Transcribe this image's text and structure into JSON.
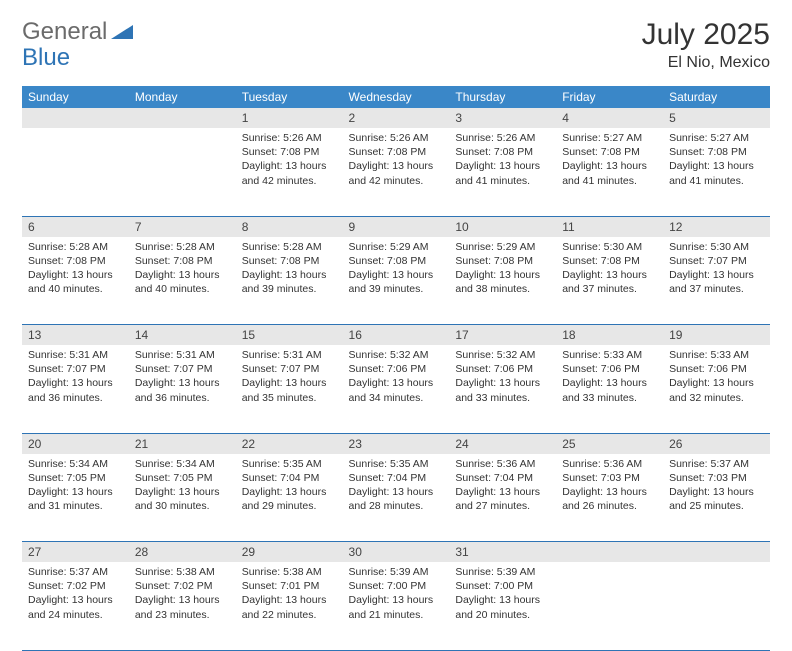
{
  "logo": {
    "general": "General",
    "blue": "Blue"
  },
  "title": "July 2025",
  "location": "El Nio, Mexico",
  "colors": {
    "header_bg": "#3a87c8",
    "header_text": "#ffffff",
    "daynum_bg": "#e7e7e7",
    "rule": "#2e74b5",
    "logo_gray": "#6b6b6b",
    "logo_blue": "#2e74b5",
    "body_text": "#333333"
  },
  "weekdays": [
    "Sunday",
    "Monday",
    "Tuesday",
    "Wednesday",
    "Thursday",
    "Friday",
    "Saturday"
  ],
  "weeks": [
    [
      null,
      null,
      {
        "n": "1",
        "sr": "5:26 AM",
        "ss": "7:08 PM",
        "dl": "13 hours and 42 minutes."
      },
      {
        "n": "2",
        "sr": "5:26 AM",
        "ss": "7:08 PM",
        "dl": "13 hours and 42 minutes."
      },
      {
        "n": "3",
        "sr": "5:26 AM",
        "ss": "7:08 PM",
        "dl": "13 hours and 41 minutes."
      },
      {
        "n": "4",
        "sr": "5:27 AM",
        "ss": "7:08 PM",
        "dl": "13 hours and 41 minutes."
      },
      {
        "n": "5",
        "sr": "5:27 AM",
        "ss": "7:08 PM",
        "dl": "13 hours and 41 minutes."
      }
    ],
    [
      {
        "n": "6",
        "sr": "5:28 AM",
        "ss": "7:08 PM",
        "dl": "13 hours and 40 minutes."
      },
      {
        "n": "7",
        "sr": "5:28 AM",
        "ss": "7:08 PM",
        "dl": "13 hours and 40 minutes."
      },
      {
        "n": "8",
        "sr": "5:28 AM",
        "ss": "7:08 PM",
        "dl": "13 hours and 39 minutes."
      },
      {
        "n": "9",
        "sr": "5:29 AM",
        "ss": "7:08 PM",
        "dl": "13 hours and 39 minutes."
      },
      {
        "n": "10",
        "sr": "5:29 AM",
        "ss": "7:08 PM",
        "dl": "13 hours and 38 minutes."
      },
      {
        "n": "11",
        "sr": "5:30 AM",
        "ss": "7:08 PM",
        "dl": "13 hours and 37 minutes."
      },
      {
        "n": "12",
        "sr": "5:30 AM",
        "ss": "7:07 PM",
        "dl": "13 hours and 37 minutes."
      }
    ],
    [
      {
        "n": "13",
        "sr": "5:31 AM",
        "ss": "7:07 PM",
        "dl": "13 hours and 36 minutes."
      },
      {
        "n": "14",
        "sr": "5:31 AM",
        "ss": "7:07 PM",
        "dl": "13 hours and 36 minutes."
      },
      {
        "n": "15",
        "sr": "5:31 AM",
        "ss": "7:07 PM",
        "dl": "13 hours and 35 minutes."
      },
      {
        "n": "16",
        "sr": "5:32 AM",
        "ss": "7:06 PM",
        "dl": "13 hours and 34 minutes."
      },
      {
        "n": "17",
        "sr": "5:32 AM",
        "ss": "7:06 PM",
        "dl": "13 hours and 33 minutes."
      },
      {
        "n": "18",
        "sr": "5:33 AM",
        "ss": "7:06 PM",
        "dl": "13 hours and 33 minutes."
      },
      {
        "n": "19",
        "sr": "5:33 AM",
        "ss": "7:06 PM",
        "dl": "13 hours and 32 minutes."
      }
    ],
    [
      {
        "n": "20",
        "sr": "5:34 AM",
        "ss": "7:05 PM",
        "dl": "13 hours and 31 minutes."
      },
      {
        "n": "21",
        "sr": "5:34 AM",
        "ss": "7:05 PM",
        "dl": "13 hours and 30 minutes."
      },
      {
        "n": "22",
        "sr": "5:35 AM",
        "ss": "7:04 PM",
        "dl": "13 hours and 29 minutes."
      },
      {
        "n": "23",
        "sr": "5:35 AM",
        "ss": "7:04 PM",
        "dl": "13 hours and 28 minutes."
      },
      {
        "n": "24",
        "sr": "5:36 AM",
        "ss": "7:04 PM",
        "dl": "13 hours and 27 minutes."
      },
      {
        "n": "25",
        "sr": "5:36 AM",
        "ss": "7:03 PM",
        "dl": "13 hours and 26 minutes."
      },
      {
        "n": "26",
        "sr": "5:37 AM",
        "ss": "7:03 PM",
        "dl": "13 hours and 25 minutes."
      }
    ],
    [
      {
        "n": "27",
        "sr": "5:37 AM",
        "ss": "7:02 PM",
        "dl": "13 hours and 24 minutes."
      },
      {
        "n": "28",
        "sr": "5:38 AM",
        "ss": "7:02 PM",
        "dl": "13 hours and 23 minutes."
      },
      {
        "n": "29",
        "sr": "5:38 AM",
        "ss": "7:01 PM",
        "dl": "13 hours and 22 minutes."
      },
      {
        "n": "30",
        "sr": "5:39 AM",
        "ss": "7:00 PM",
        "dl": "13 hours and 21 minutes."
      },
      {
        "n": "31",
        "sr": "5:39 AM",
        "ss": "7:00 PM",
        "dl": "13 hours and 20 minutes."
      },
      null,
      null
    ]
  ],
  "labels": {
    "sunrise": "Sunrise:",
    "sunset": "Sunset:",
    "daylight": "Daylight:"
  }
}
